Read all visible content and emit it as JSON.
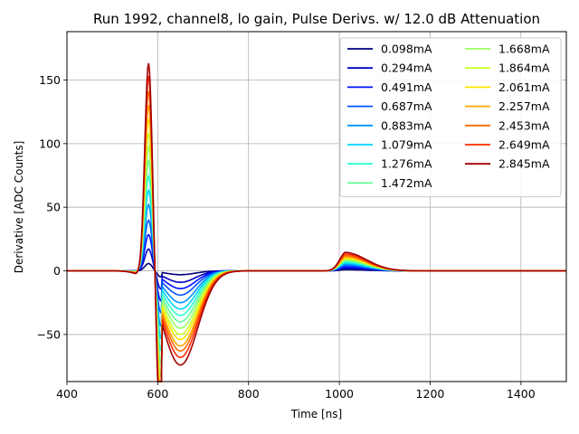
{
  "chart_data": {
    "type": "line",
    "title": "Run 1992, channel8, lo gain, Pulse Derivs. w/ 12.0 dB Attenuation",
    "xlabel": "Time [ns]",
    "ylabel": "Derivative [ADC Counts]",
    "xlim": [
      400,
      1500
    ],
    "ylim": [
      -87,
      188
    ],
    "xticks": [
      400,
      600,
      800,
      1000,
      1200,
      1400
    ],
    "xtick_labels": [
      "400",
      "600",
      "800",
      "1000",
      "1200",
      "1400"
    ],
    "yticks": [
      -50,
      0,
      50,
      100,
      150
    ],
    "ytick_labels": [
      "−50",
      "0",
      "50",
      "100",
      "150"
    ],
    "grid": true,
    "legend_position": "top-right",
    "legend_columns": 2,
    "series": [
      {
        "name": "0.098mA",
        "color": "#000080",
        "peak": 6,
        "trough": -3,
        "bump": 1.0
      },
      {
        "name": "0.294mA",
        "color": "#0000c4",
        "peak": 18,
        "trough": -9,
        "bump": 2.0
      },
      {
        "name": "0.491mA",
        "color": "#0010ff",
        "peak": 30,
        "trough": -14,
        "bump": 3.0
      },
      {
        "name": "0.687mA",
        "color": "#0054ff",
        "peak": 42,
        "trough": -19,
        "bump": 4.0
      },
      {
        "name": "0.883mA",
        "color": "#0094ff",
        "peak": 55,
        "trough": -25,
        "bump": 5.0
      },
      {
        "name": "1.079mA",
        "color": "#00d4ff",
        "peak": 67,
        "trough": -30,
        "bump": 6.0
      },
      {
        "name": "1.276mA",
        "color": "#29ffce",
        "peak": 79,
        "trough": -35,
        "bump": 7.0
      },
      {
        "name": "1.472mA",
        "color": "#60ff97",
        "peak": 92,
        "trough": -40,
        "bump": 7.8
      },
      {
        "name": "1.668mA",
        "color": "#97ff60",
        "peak": 104,
        "trough": -45,
        "bump": 8.6
      },
      {
        "name": "1.864mA",
        "color": "#ceff29",
        "peak": 116,
        "trough": -50,
        "bump": 9.4
      },
      {
        "name": "2.061mA",
        "color": "#ffe600",
        "peak": 128,
        "trough": -54,
        "bump": 10.2
      },
      {
        "name": "2.257mA",
        "color": "#ffa700",
        "peak": 140,
        "trough": -59,
        "bump": 11.0
      },
      {
        "name": "2.453mA",
        "color": "#ff6800",
        "peak": 152,
        "trough": -63,
        "bump": 12.0
      },
      {
        "name": "2.649mA",
        "color": "#ff2900",
        "peak": 165,
        "trough": -68,
        "bump": 13.2
      },
      {
        "name": "2.845mA",
        "color": "#a00000",
        "peak": 177,
        "trough": -74,
        "bump": 14.5
      }
    ]
  }
}
